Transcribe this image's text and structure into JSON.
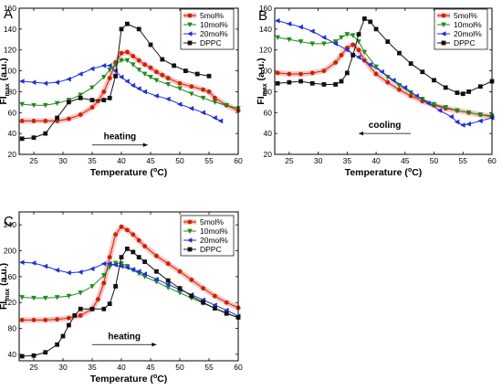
{
  "figure": {
    "xlabel_parts": [
      "Temperature (",
      "o",
      "C)"
    ],
    "ylabel_parts": [
      "FI",
      "max",
      " (a.u.)"
    ]
  },
  "chart_data": [
    {
      "panel": "A",
      "type": "line",
      "xlim": [
        22.5,
        60
      ],
      "ylim": [
        20,
        160
      ],
      "xticks": [
        25,
        30,
        35,
        40,
        45,
        50,
        55,
        60
      ],
      "yticks": [
        20,
        40,
        60,
        80,
        100,
        120,
        140,
        160
      ],
      "xlabel": "Temperature (°C)",
      "ylabel": "FI max (a.u.)",
      "legend_position": "top-right",
      "annotation": {
        "text": "heating",
        "arrow": "right",
        "x_from": 35,
        "x_to": 44.5,
        "y": 29
      },
      "series": [
        {
          "name": "5mol%",
          "color": "#cc2200",
          "marker": "circle",
          "highlight": true,
          "x": [
            23,
            25,
            27,
            29,
            31,
            33,
            35,
            36,
            37,
            38,
            39,
            40,
            41,
            42,
            43,
            44,
            45,
            46,
            47,
            48,
            50,
            52,
            54,
            55,
            56,
            58,
            60
          ],
          "y": [
            52,
            52,
            52,
            52,
            54,
            58,
            65,
            71,
            80,
            93,
            108,
            117,
            118,
            114,
            110,
            106,
            103,
            99,
            96,
            93,
            88,
            85,
            82,
            80,
            74,
            67,
            62
          ]
        },
        {
          "name": "10mol%",
          "color": "#1c8c1c",
          "marker": "triangle-down",
          "highlight": false,
          "x": [
            23,
            25,
            27,
            29,
            31,
            33,
            35,
            37,
            38,
            39,
            40,
            41,
            42,
            43,
            44,
            45,
            46,
            48,
            50,
            52,
            54,
            56,
            58,
            60
          ],
          "y": [
            68,
            67,
            67,
            69,
            72,
            77,
            84,
            94,
            101,
            106,
            110,
            110,
            106,
            101,
            97,
            94,
            91,
            87,
            83,
            78,
            74,
            70,
            67,
            64
          ]
        },
        {
          "name": "20mol%",
          "color": "#1f2fd6",
          "marker": "triangle-left",
          "highlight": false,
          "x": [
            23,
            25,
            27,
            29,
            31,
            33,
            35,
            37,
            38,
            39,
            40,
            41,
            42,
            43,
            44,
            46,
            48,
            50,
            52,
            54,
            56,
            57
          ],
          "y": [
            90,
            89,
            88,
            89,
            92,
            97,
            102,
            105,
            105,
            100,
            94,
            90,
            86,
            83,
            80,
            76,
            73,
            68,
            64,
            60,
            55,
            52
          ]
        },
        {
          "name": "DPPC",
          "color": "#111111",
          "marker": "square",
          "highlight": false,
          "x": [
            23,
            25,
            27,
            29,
            31,
            33,
            35,
            37,
            38,
            39,
            40,
            41,
            43,
            45,
            47,
            49,
            51,
            53,
            55
          ],
          "y": [
            35,
            36,
            40,
            55,
            70,
            74,
            72,
            72,
            74,
            95,
            140,
            145,
            140,
            125,
            111,
            105,
            100,
            97,
            95
          ]
        }
      ]
    },
    {
      "panel": "B",
      "type": "line",
      "xlim": [
        22.5,
        60
      ],
      "ylim": [
        20,
        160
      ],
      "xticks": [
        25,
        30,
        35,
        40,
        45,
        50,
        55,
        60
      ],
      "yticks": [
        20,
        40,
        60,
        80,
        100,
        120,
        140,
        160
      ],
      "xlabel": "Temperature (°C)",
      "ylabel": "FI max (a.u.)",
      "legend_position": "top-right",
      "annotation": {
        "text": "cooling",
        "arrow": "left",
        "x_from": 46,
        "x_to": 37,
        "y": 40
      },
      "series": [
        {
          "name": "5mol%",
          "color": "#cc2200",
          "marker": "circle",
          "highlight": true,
          "x": [
            23,
            25,
            27,
            29,
            31,
            33,
            34,
            35,
            36,
            37,
            38,
            40,
            42,
            44,
            46,
            48,
            50,
            52,
            54,
            56,
            58,
            60
          ],
          "y": [
            98,
            97,
            97,
            98,
            100,
            108,
            115,
            122,
            125,
            120,
            110,
            97,
            89,
            82,
            76,
            71,
            67,
            64,
            62,
            60,
            58,
            56
          ]
        },
        {
          "name": "10mol%",
          "color": "#1c8c1c",
          "marker": "triangle-down",
          "highlight": false,
          "x": [
            23,
            25,
            27,
            29,
            31,
            33,
            34,
            35,
            36,
            37,
            38,
            40,
            42,
            44,
            46,
            48,
            50,
            52,
            54,
            56,
            58,
            60
          ],
          "y": [
            132,
            130,
            128,
            126,
            126,
            128,
            132,
            135,
            134,
            128,
            118,
            104,
            94,
            86,
            79,
            73,
            68,
            65,
            62,
            60,
            58,
            57
          ]
        },
        {
          "name": "20mol%",
          "color": "#1f2fd6",
          "marker": "triangle-left",
          "highlight": false,
          "x": [
            23,
            25,
            27,
            29,
            31,
            33,
            35,
            37,
            39,
            41,
            43,
            45,
            47,
            49,
            51,
            53,
            54,
            55,
            56,
            58,
            60
          ],
          "y": [
            148,
            145,
            142,
            138,
            132,
            126,
            120,
            113,
            106,
            99,
            91,
            84,
            76,
            69,
            62,
            56,
            51,
            48,
            49,
            52,
            55
          ]
        },
        {
          "name": "DPPC",
          "color": "#111111",
          "marker": "square",
          "highlight": false,
          "x": [
            23,
            25,
            27,
            29,
            31,
            33,
            34,
            35,
            36,
            37,
            38,
            39,
            40,
            42,
            44,
            46,
            48,
            50,
            52,
            54,
            55,
            56,
            58,
            60
          ],
          "y": [
            88,
            89,
            90,
            88,
            87,
            87,
            90,
            98,
            115,
            135,
            150,
            147,
            140,
            128,
            117,
            107,
            99,
            91,
            84,
            79,
            78,
            80,
            85,
            90
          ]
        }
      ]
    },
    {
      "panel": "C",
      "type": "line",
      "xlim": [
        22.5,
        60
      ],
      "ylim": [
        30,
        260
      ],
      "xticks": [
        25,
        30,
        35,
        40,
        45,
        50,
        55,
        60
      ],
      "yticks": [
        40,
        80,
        120,
        160,
        200,
        240
      ],
      "xlabel": "Temperature (°C)",
      "ylabel": "FI max (a.u.)",
      "legend_position": "top-right",
      "annotation": {
        "text": "heating",
        "arrow": "right",
        "x_from": 35,
        "x_to": 46,
        "y": 55
      },
      "series": [
        {
          "name": "5mol%",
          "color": "#cc2200",
          "marker": "circle",
          "highlight": true,
          "x": [
            23,
            25,
            27,
            29,
            31,
            33,
            35,
            36,
            37,
            38,
            39,
            40,
            41,
            42,
            43,
            44,
            46,
            48,
            50,
            52,
            54,
            56,
            58,
            60
          ],
          "y": [
            93,
            93,
            93,
            94,
            96,
            100,
            110,
            125,
            150,
            190,
            225,
            237,
            232,
            225,
            216,
            207,
            192,
            180,
            168,
            155,
            142,
            130,
            120,
            112
          ]
        },
        {
          "name": "10mol%",
          "color": "#1c8c1c",
          "marker": "triangle-down",
          "highlight": false,
          "x": [
            23,
            25,
            27,
            29,
            31,
            33,
            35,
            37,
            38,
            39,
            40,
            41,
            42,
            43,
            44,
            46,
            48,
            50,
            52,
            54,
            56,
            58,
            60
          ],
          "y": [
            128,
            127,
            127,
            128,
            130,
            135,
            145,
            162,
            175,
            181,
            180,
            176,
            170,
            165,
            160,
            152,
            143,
            135,
            127,
            119,
            111,
            104,
            96
          ]
        },
        {
          "name": "20mol%",
          "color": "#1f2fd6",
          "marker": "triangle-left",
          "highlight": false,
          "x": [
            23,
            25,
            27,
            29,
            31,
            33,
            35,
            37,
            38,
            39,
            40,
            41,
            42,
            43,
            44,
            46,
            48,
            50,
            52,
            54,
            56,
            58,
            60
          ],
          "y": [
            182,
            181,
            176,
            170,
            166,
            167,
            172,
            180,
            180,
            178,
            176,
            174,
            171,
            168,
            164,
            156,
            148,
            140,
            132,
            124,
            116,
            108,
            99
          ]
        },
        {
          "name": "DPPC",
          "color": "#111111",
          "marker": "square",
          "highlight": false,
          "x": [
            23,
            25,
            27,
            29,
            30,
            31,
            32,
            33,
            35,
            37,
            38,
            39,
            40,
            41,
            42,
            43,
            44,
            46,
            48,
            50,
            52,
            54,
            56,
            58,
            60
          ],
          "y": [
            37,
            38,
            43,
            55,
            68,
            85,
            100,
            110,
            110,
            110,
            118,
            145,
            190,
            203,
            198,
            190,
            183,
            168,
            154,
            142,
            130,
            120,
            111,
            103,
            97
          ]
        }
      ]
    }
  ]
}
